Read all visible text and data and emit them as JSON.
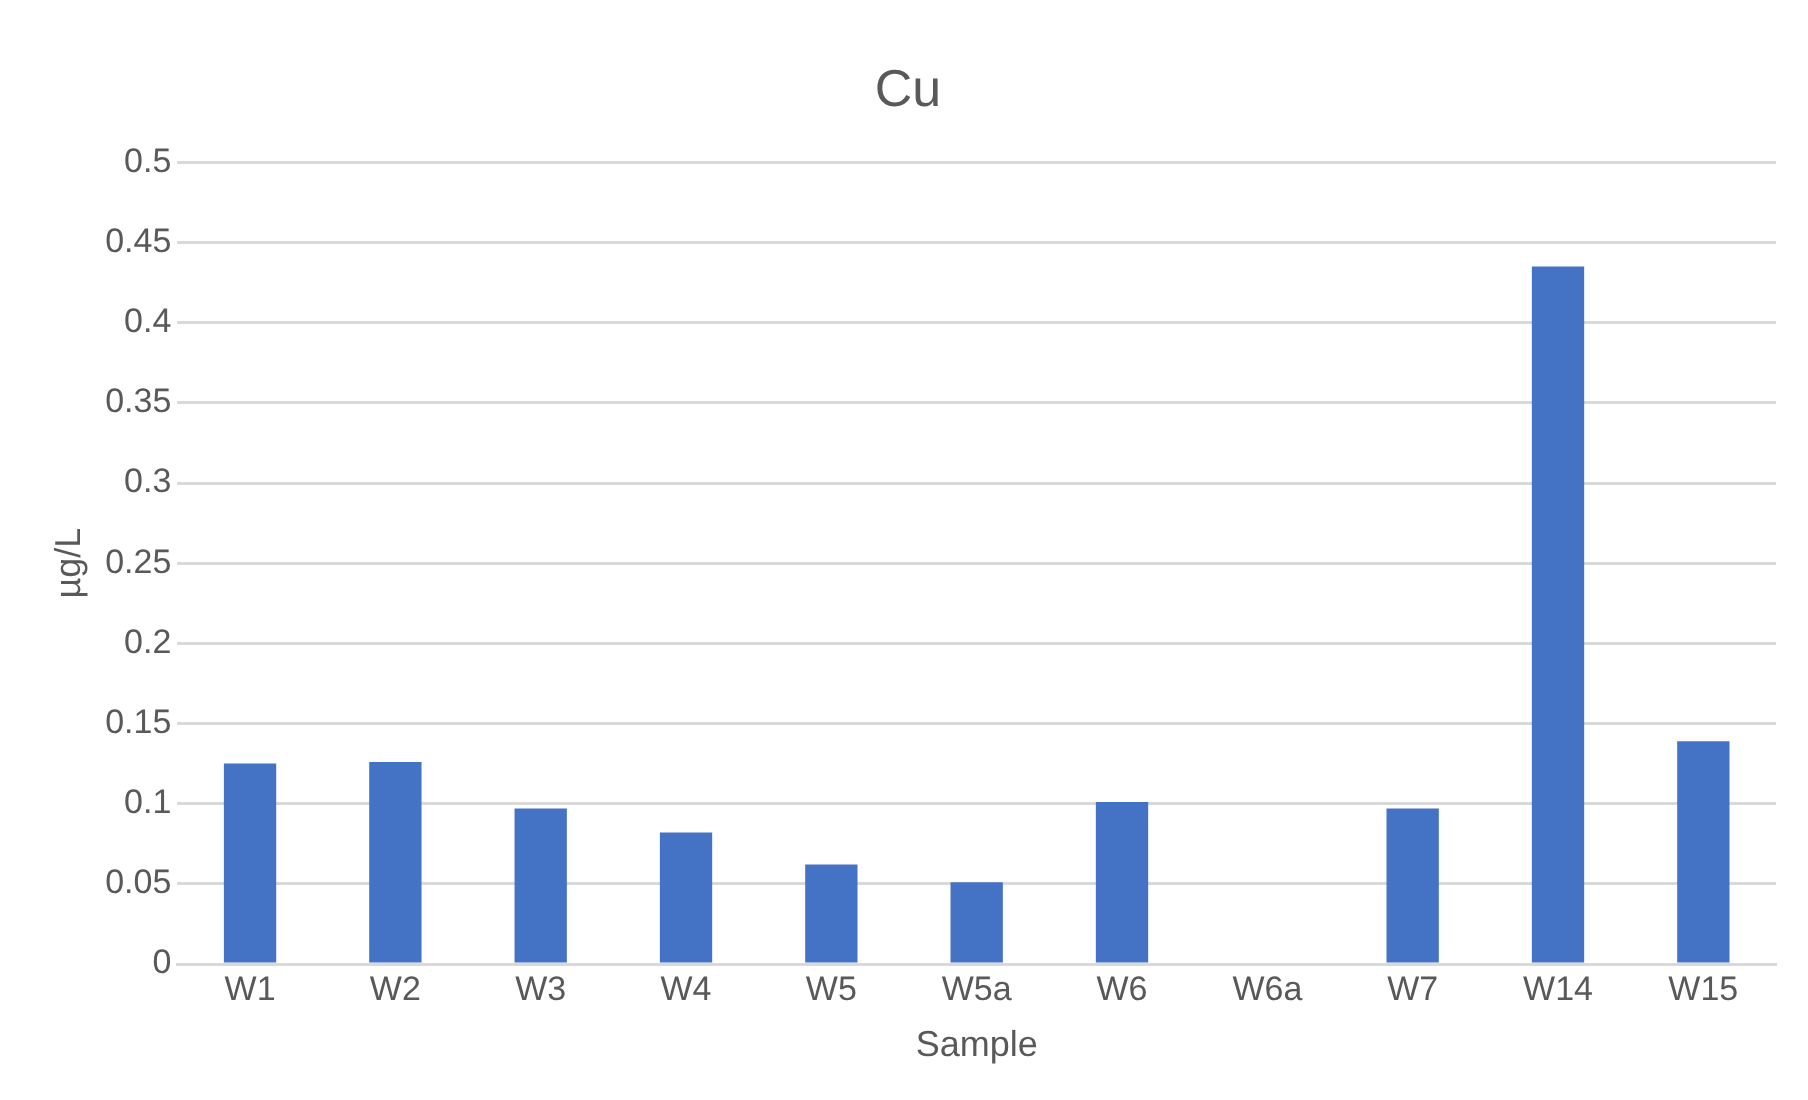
{
  "chart_data": {
    "type": "bar",
    "title": "Cu",
    "xlabel": "Sample",
    "ylabel": "µg/L",
    "categories": [
      "W1",
      "W2",
      "W3",
      "W4",
      "W5",
      "W5a",
      "W6",
      "W6a",
      "W7",
      "W14",
      "W15"
    ],
    "values": [
      0.125,
      0.126,
      0.097,
      0.082,
      0.062,
      0.051,
      0.101,
      null,
      0.097,
      0.435,
      0.139
    ],
    "color": "#4472c4",
    "ylim": [
      0,
      0.5
    ],
    "yticks": [
      0,
      0.05,
      0.1,
      0.15,
      0.2,
      0.25,
      0.3,
      0.35,
      0.4,
      0.45,
      0.5
    ],
    "grid": "y",
    "legend": false
  }
}
